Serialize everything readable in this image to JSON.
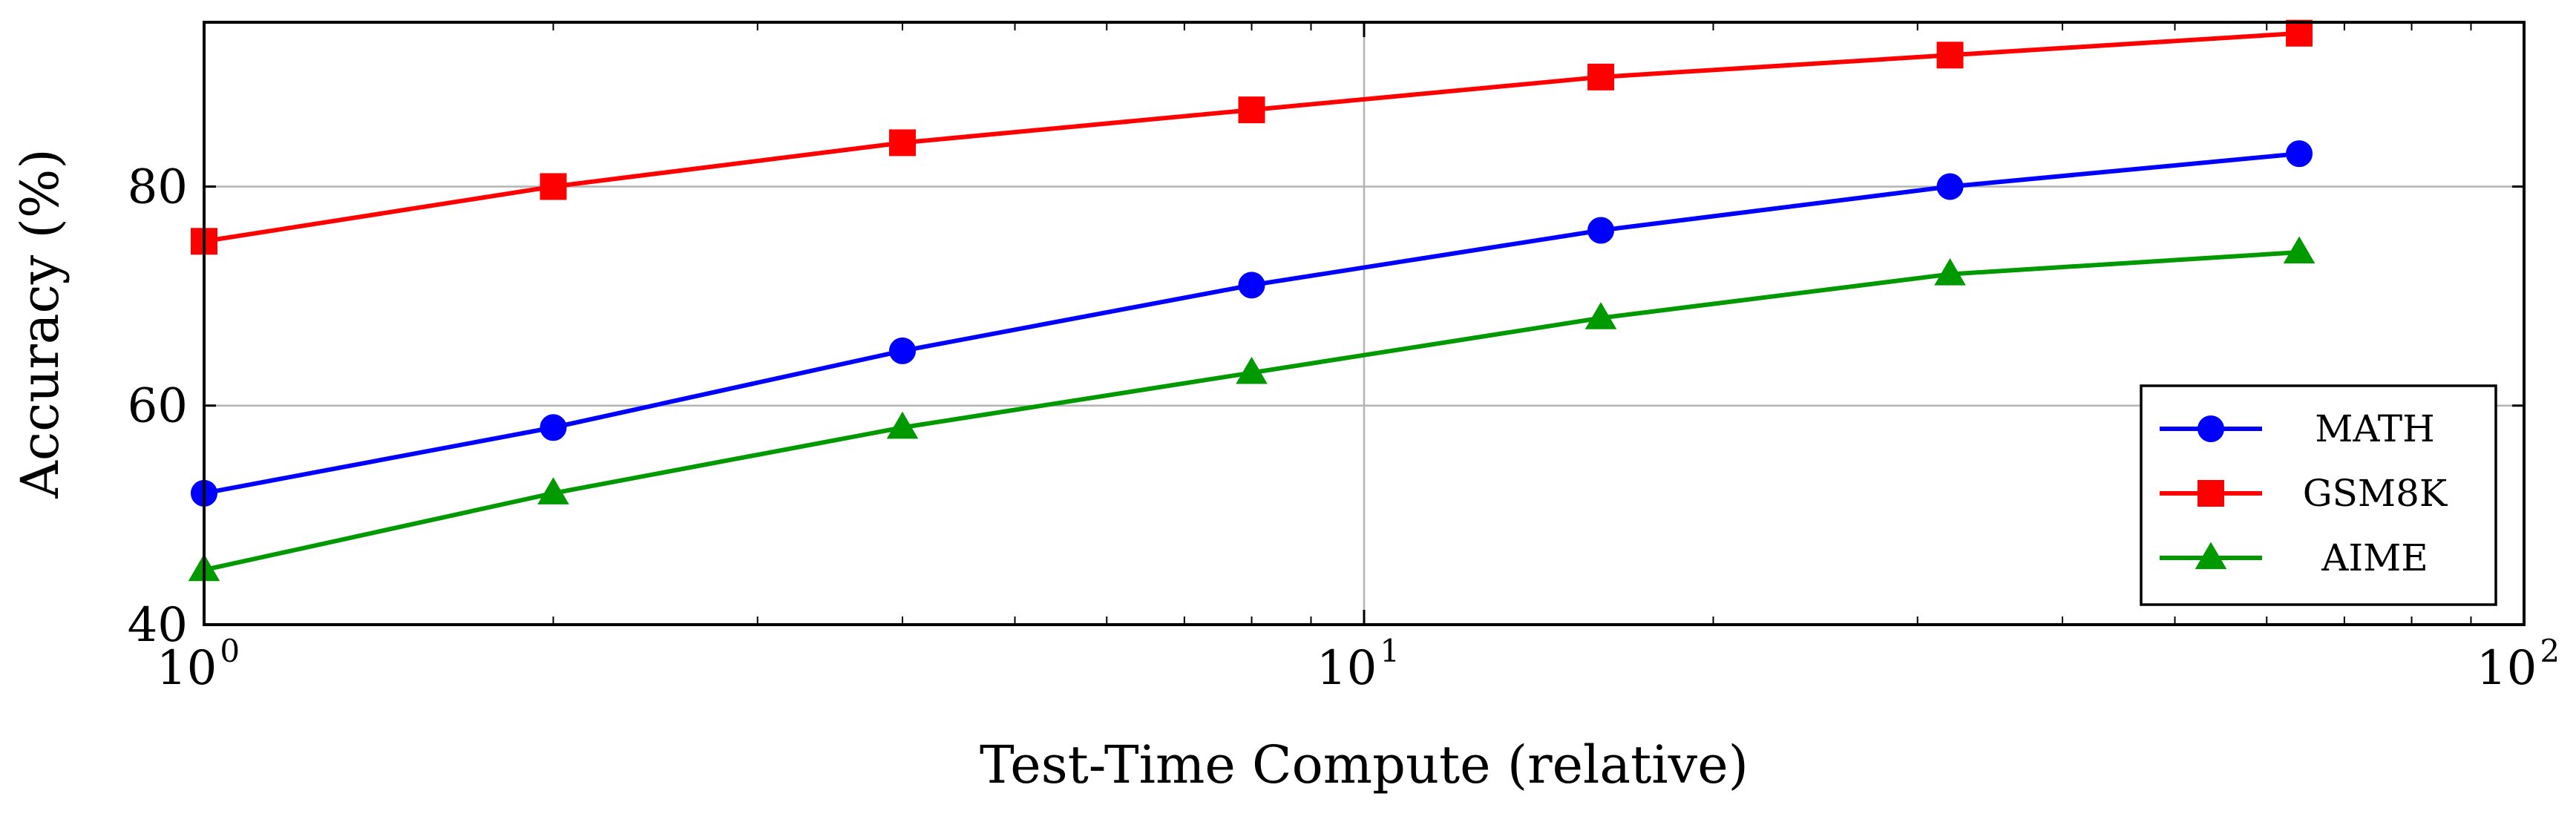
{
  "chart_data": {
    "type": "line",
    "x_scale": "log",
    "xlabel": "Test-Time Compute (relative)",
    "ylabel": "Accuracy (%)",
    "xlim": [
      1,
      100
    ],
    "ylim": [
      40,
      95
    ],
    "x_ticks": [
      {
        "value": 1,
        "base": "10",
        "exp": "0"
      },
      {
        "value": 10,
        "base": "10",
        "exp": "1"
      },
      {
        "value": 100,
        "base": "10",
        "exp": "2"
      }
    ],
    "y_ticks": [
      {
        "value": 40,
        "label": "40"
      },
      {
        "value": 60,
        "label": "60"
      },
      {
        "value": 80,
        "label": "80"
      }
    ],
    "grid": "major",
    "legend_position": "lower right",
    "x": [
      1,
      2,
      4,
      8,
      16,
      32,
      64
    ],
    "series": [
      {
        "name": "MATH",
        "color": "#0000ff",
        "marker": "circle",
        "values": [
          52,
          58,
          65,
          71,
          76,
          80,
          83
        ]
      },
      {
        "name": "GSM8K",
        "color": "#ff0000",
        "marker": "square",
        "values": [
          75,
          80,
          84,
          87,
          90,
          92,
          94
        ]
      },
      {
        "name": "AIME",
        "color": "#009900",
        "marker": "triangle",
        "values": [
          45,
          52,
          58,
          63,
          68,
          72,
          74
        ]
      }
    ]
  }
}
